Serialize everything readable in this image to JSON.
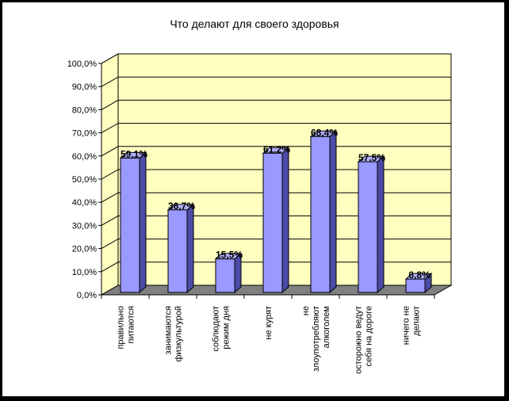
{
  "chart_data": {
    "type": "bar",
    "title": "Что делают для своего здоровья",
    "categories": [
      [
        "правильно",
        "питаются"
      ],
      [
        "занимаются",
        "физкультурой"
      ],
      [
        "соблюдают",
        "режим дня"
      ],
      [
        "не курят"
      ],
      [
        "не",
        "злоупотребляют",
        "алкоголем"
      ],
      [
        "осторожно ведут",
        "себя на дороге"
      ],
      [
        "ничего не",
        "делают"
      ]
    ],
    "values": [
      59.1,
      36.7,
      15.5,
      61.2,
      68.4,
      57.5,
      6.8
    ],
    "data_labels": [
      "59,1%",
      "36,7%",
      "15,5%",
      "61,2%",
      "68,4%",
      "57,5%",
      "6,8%"
    ],
    "yticks": [
      "0,0%",
      "10,0%",
      "20,0%",
      "30,0%",
      "40,0%",
      "50,0%",
      "60,0%",
      "70,0%",
      "80,0%",
      "90,0%",
      "100,0%"
    ],
    "ylim": [
      0,
      100
    ],
    "xlabel": "",
    "ylabel": "",
    "grid": true,
    "legend": "none",
    "colors": {
      "wall": "#ffffc0",
      "floor": "#808080",
      "bar_front": "#9999ff",
      "bar_side": "#4b4ba6",
      "bar_top": "#b3b3ff",
      "outline": "#000000"
    }
  }
}
